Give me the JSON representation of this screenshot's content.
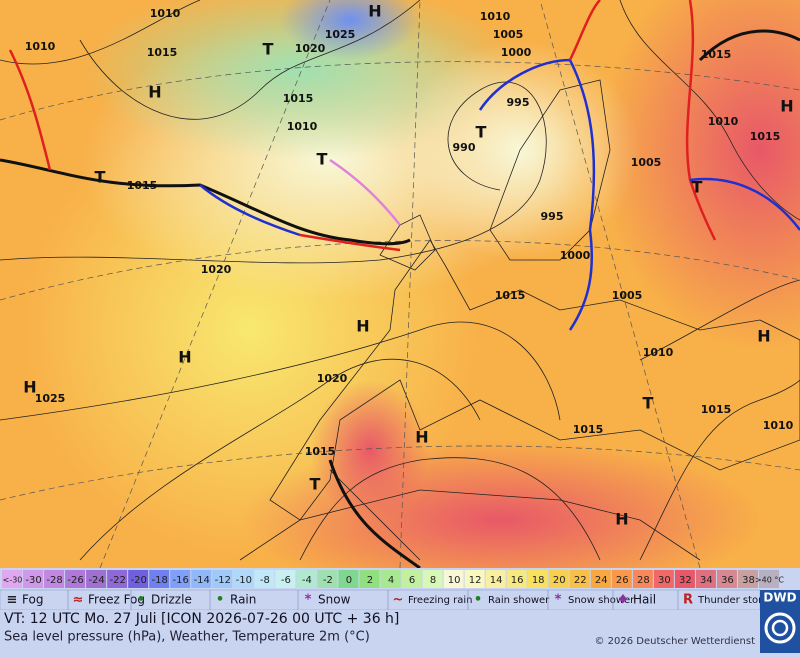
{
  "map": {
    "pressure_labels": [
      "1010",
      "1010",
      "1015",
      "1020",
      "1025",
      "1010",
      "1005",
      "1000",
      "995",
      "990",
      "1015",
      "1010",
      "1015",
      "1020",
      "1025",
      "1020",
      "1015",
      "1015",
      "995",
      "1000",
      "1005",
      "1005",
      "1010",
      "1015",
      "1015",
      "1010",
      "1015",
      "1015",
      "1010"
    ],
    "centers": [
      "H",
      "T",
      "H",
      "T",
      "T",
      "T",
      "H",
      "H",
      "H",
      "H",
      "T",
      "H",
      "T",
      "T",
      "H",
      "H"
    ]
  },
  "temperature_scale": {
    "labels": [
      "<-30",
      "-30",
      "-28",
      "-26",
      "-24",
      "-22",
      "-20",
      "-18",
      "-16",
      "-14",
      "-12",
      "-10",
      "-8",
      "-6",
      "-4",
      "-2",
      "0",
      "2",
      "4",
      "6",
      "8",
      "10",
      "12",
      "14",
      "16",
      "18",
      "20",
      "22",
      "24",
      "26",
      "28",
      "30",
      "32",
      "34",
      "36",
      "38",
      ">40 °C"
    ],
    "colors": [
      "#e0a8f0",
      "#d098e8",
      "#c088e0",
      "#b078d8",
      "#a070d0",
      "#9068d8",
      "#7060e0",
      "#7080f0",
      "#80a0f8",
      "#90b8f8",
      "#a0c8f8",
      "#b0d8f8",
      "#c0e8f8",
      "#c8f0f0",
      "#b0e8d0",
      "#a0e0b0",
      "#80d890",
      "#90e080",
      "#a8e890",
      "#c0f0a0",
      "#d8f8b8",
      "#f8f8d8",
      "#f8f8c0",
      "#f8f0a0",
      "#f8e880",
      "#f8e060",
      "#f8d050",
      "#f8c048",
      "#f8a840",
      "#f89848",
      "#f88858",
      "#f06868",
      "#e85868",
      "#e07080",
      "#d88890",
      "#c8a0a0",
      "#b8b0c0"
    ]
  },
  "weather_legend": [
    "Fog",
    "Freez Fog",
    "Drizzle",
    "Rain",
    "Snow",
    "Freezing rain",
    "Rain shower",
    "Snow shower",
    "Hail",
    "Thunder storm"
  ],
  "footer": {
    "valid_time": "VT: 12 UTC Mo.   27 Juli [ICON 2026-07-26  00 UTC + 36 h]",
    "description": "Sea level pressure (hPa), Weather, Temperature 2m (°C)",
    "copyright": "© 2026 Deutscher Wetterdienst",
    "logo": "DWD"
  }
}
